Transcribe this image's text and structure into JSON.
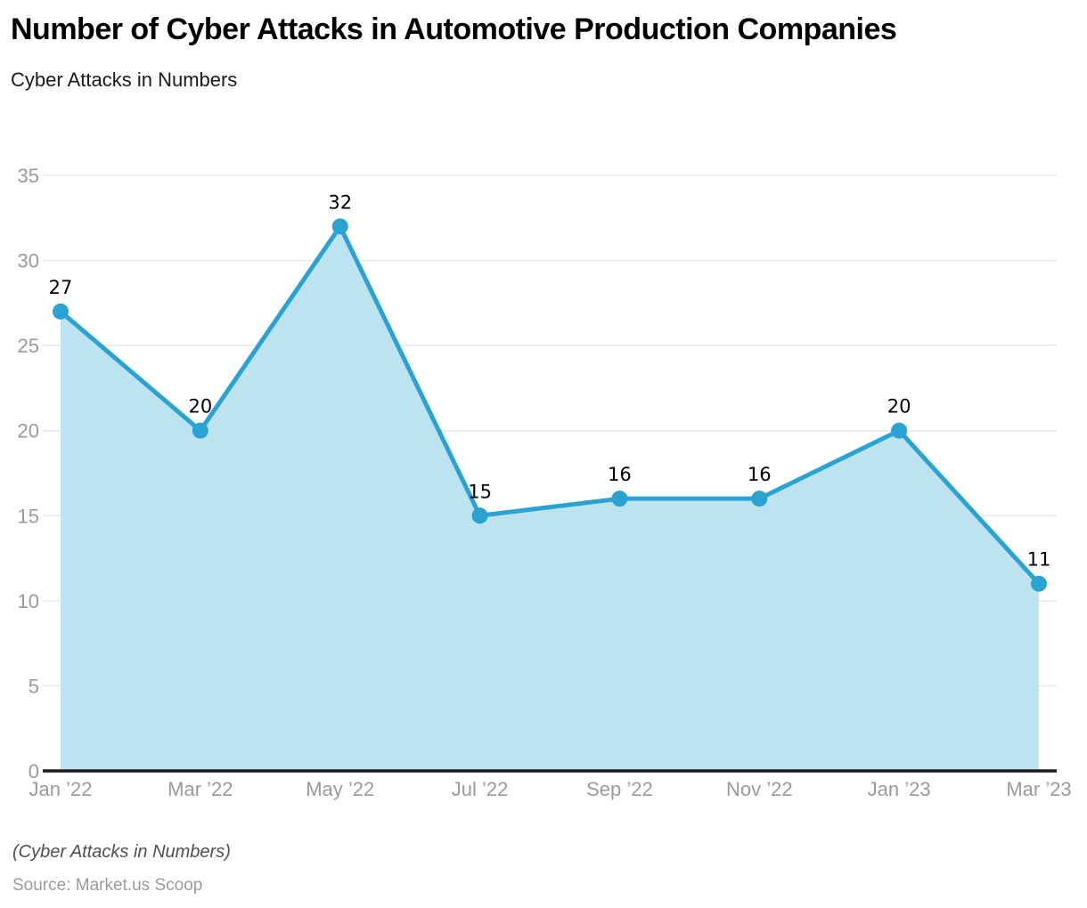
{
  "header": {
    "title": "Number of Cyber Attacks in Automotive Production Companies",
    "subtitle": "Cyber Attacks in Numbers"
  },
  "footer": {
    "note": "(Cyber Attacks in Numbers)",
    "source": "Source: Market.us Scoop"
  },
  "chart_data": {
    "type": "area",
    "title": "Number of Cyber Attacks in Automotive Production Companies",
    "subtitle": "Cyber Attacks in Numbers",
    "categories": [
      "Jan ’22",
      "Mar ’22",
      "May ’22",
      "Jul ’22",
      "Sep ’22",
      "Nov ’22",
      "Jan ’23",
      "Mar ’23"
    ],
    "values": [
      27,
      20,
      32,
      15,
      16,
      16,
      20,
      11
    ],
    "xlabel": "",
    "ylabel": "",
    "ylim": [
      0,
      35
    ],
    "yticks": [
      0,
      5,
      10,
      15,
      20,
      25,
      30,
      35
    ],
    "grid": true,
    "legend_position": "none",
    "colors": {
      "line": "#2aa3d2",
      "marker": "#2aa3d2",
      "fill": "#bde3f1",
      "gridline": "#e8e8e8",
      "axis_line": "#1a1a1a",
      "tick_label": "#9a9a9a",
      "data_label": "#000000"
    }
  }
}
